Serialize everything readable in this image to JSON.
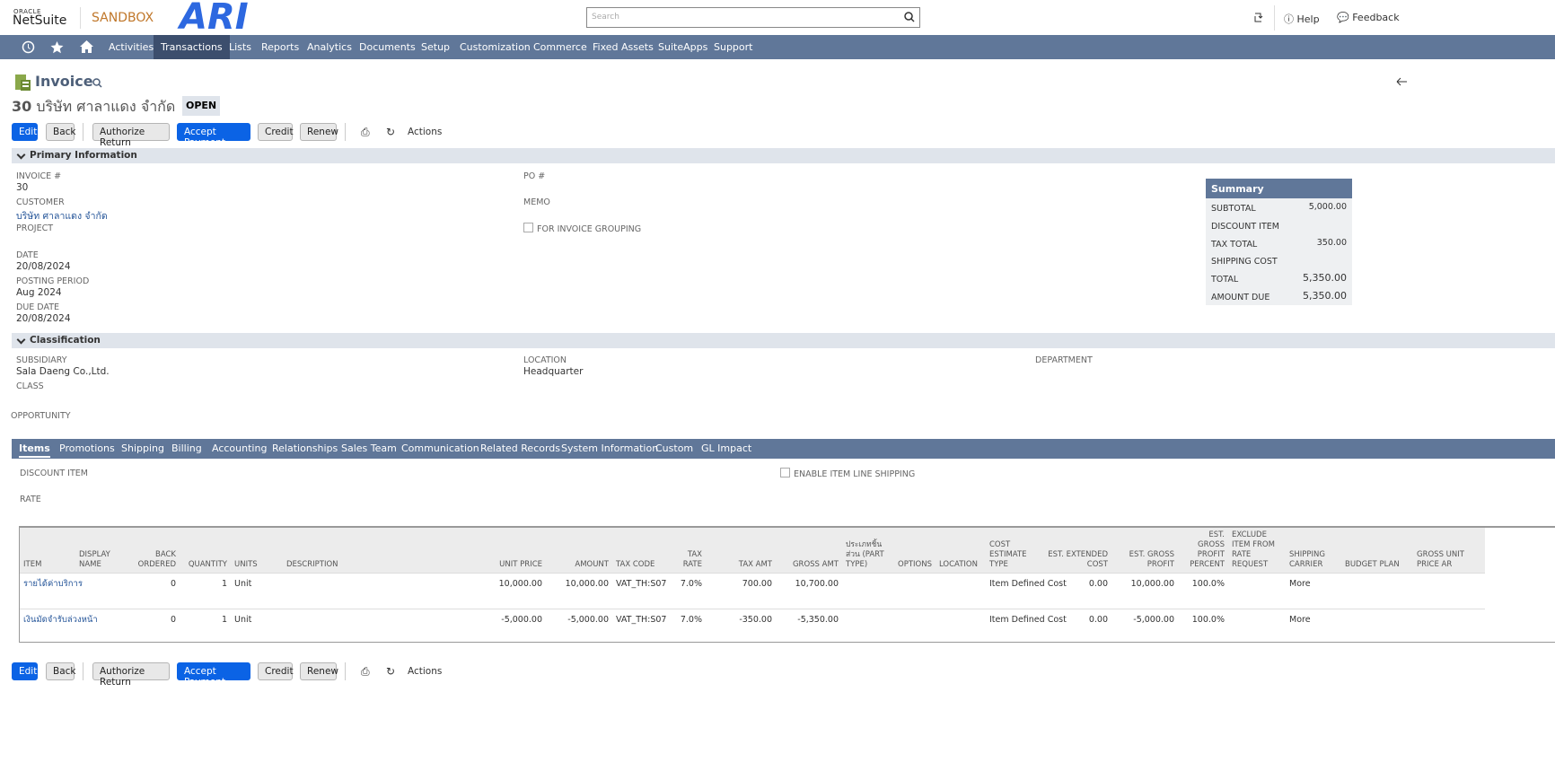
{
  "header": {
    "oracle": "ORACLE",
    "product": "NetSuite",
    "environment": "SANDBOX",
    "logo": "ARI",
    "search_placeholder": "Search",
    "help": "Help",
    "feedback": "Feedback"
  },
  "nav": [
    "Activities",
    "Transactions",
    "Lists",
    "Reports",
    "Analytics",
    "Documents",
    "Setup",
    "Customization",
    "Commerce",
    "Fixed Assets",
    "SuiteApps",
    "Support"
  ],
  "record": {
    "type": "Invoice",
    "number": "30",
    "customer": "บริษัท ศาลาแดง จำกัด",
    "status": "OPEN"
  },
  "buttons": [
    "Edit",
    "Back",
    "Authorize Return",
    "Accept Payment",
    "Credit",
    "Renew"
  ],
  "actions": "Actions",
  "primary": {
    "title": "Primary Information",
    "left": [
      {
        "label": "INVOICE #",
        "value": "30"
      },
      {
        "label": "CUSTOMER",
        "value": "บริษัท ศาลาแดง จำกัด"
      },
      {
        "label": "PROJECT"
      },
      {
        "label": "DATE",
        "value": "20/08/2024"
      },
      {
        "label": "POSTING PERIOD",
        "value": "Aug 2024"
      },
      {
        "label": "DUE DATE",
        "value": "20/08/2024"
      }
    ],
    "middle": [
      {
        "label": "PO #"
      },
      {
        "label": "MEMO"
      }
    ],
    "checkbox": "FOR INVOICE GROUPING"
  },
  "summary": {
    "title": "Summary",
    "rows": [
      {
        "label": "SUBTOTAL",
        "value": "5,000.00"
      },
      {
        "label": "DISCOUNT ITEM"
      },
      {
        "label": "TAX TOTAL",
        "value": "350.00"
      },
      {
        "label": "SHIPPING COST"
      },
      {
        "label": "TOTAL",
        "value": "5,350.00"
      },
      {
        "label": "AMOUNT DUE",
        "value": "5,350.00"
      }
    ]
  },
  "classification": {
    "title": "Classification",
    "fields": [
      {
        "label": "SUBSIDIARY",
        "value": "Sala Daeng Co.,Ltd."
      },
      {
        "label": "LOCATION",
        "value": "Headquarter"
      },
      {
        "label": "DEPARTMENT"
      },
      {
        "label": "CLASS"
      }
    ],
    "opportunity": "OPPORTUNITY"
  },
  "tabs": [
    "Items",
    "Promotions",
    "Shipping",
    "Billing",
    "Accounting",
    "Relationships",
    "Sales Team",
    "Communication",
    "Related Records",
    "System Information",
    "Custom",
    "GL Impact"
  ],
  "items": {
    "discount_item": "DISCOUNT ITEM",
    "rate": "RATE",
    "checkbox": "ENABLE ITEM LINE SHIPPING",
    "columns": [
      "ITEM",
      "DISPLAY NAME",
      "BACK ORDERED",
      "QUANTITY",
      "UNITS",
      "DESCRIPTION",
      "UNIT PRICE",
      "AMOUNT",
      "TAX CODE",
      "TAX RATE",
      "TAX AMT",
      "GROSS AMT",
      "ประเภทชิ้นส่วน (PART TYPE)",
      "OPTIONS",
      "LOCATION",
      "COST ESTIMATE TYPE",
      "EST. EXTENDED COST",
      "EST. GROSS PROFIT",
      "EST. GROSS PROFIT PERCENT",
      "EXCLUDE ITEM FROM RATE REQUEST",
      "SHIPPING CARRIER",
      "BUDGET PLAN",
      "GROSS UNIT PRICE AR"
    ],
    "rows": [
      [
        "รายได้ค่าบริการ",
        null,
        "0",
        "1",
        "Unit",
        null,
        "10,000.00",
        "10,000.00",
        "VAT_TH:S07",
        "7.0%",
        "700.00",
        "10,700.00",
        null,
        null,
        null,
        "Item Defined Cost",
        "0.00",
        "10,000.00",
        "100.0%",
        null,
        "More",
        null,
        null
      ],
      [
        "เงินมัดจำรับล่วงหน้า",
        null,
        "0",
        "1",
        "Unit",
        null,
        "-5,000.00",
        "-5,000.00",
        "VAT_TH:S07",
        "7.0%",
        "-350.00",
        "-5,350.00",
        null,
        null,
        null,
        "Item Defined Cost",
        "0.00",
        "-5,000.00",
        "100.0%",
        null,
        "More",
        null,
        null
      ]
    ]
  }
}
